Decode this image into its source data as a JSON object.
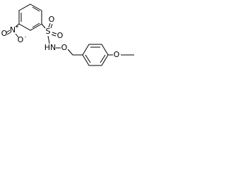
{
  "atoms": [
    {
      "label": "O"
    },
    {
      "label": "N",
      "charge": "+"
    },
    {
      "label": "O",
      "charge": "-"
    },
    {
      "label": "S"
    },
    {
      "label": "O"
    },
    {
      "label": "O"
    },
    {
      "label": "HN"
    },
    {
      "label": "O"
    },
    {
      "label": "O"
    }
  ]
}
